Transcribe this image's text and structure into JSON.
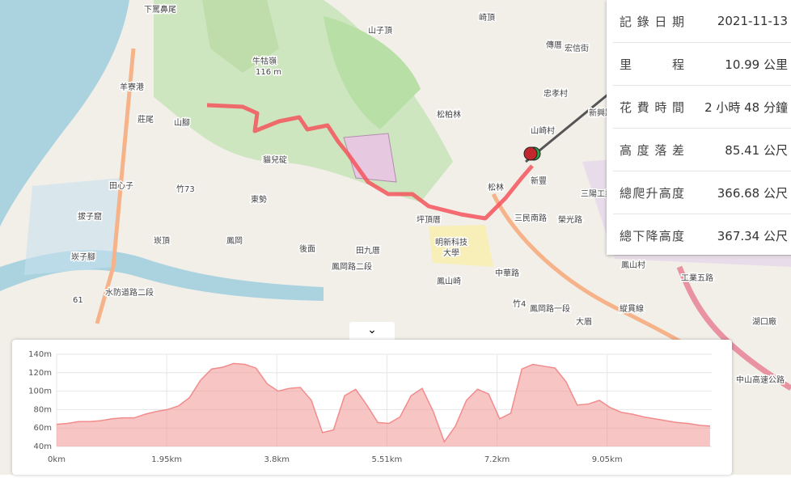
{
  "stats": [
    {
      "label": "記錄日期",
      "value": "2021-11-13"
    },
    {
      "label": "里程",
      "value": "10.99 公里"
    },
    {
      "label": "花費時間",
      "value": "2 小時 48 分鐘"
    },
    {
      "label": "高度落差",
      "value": "85.41 公尺"
    },
    {
      "label": "總爬升高度",
      "value": "366.68 公尺"
    },
    {
      "label": "總下降高度",
      "value": "367.34 公尺"
    }
  ],
  "map_labels": [
    "下罵鼻尾",
    "山子頂",
    "崎頂",
    "羊寮港",
    "牛牯嶺",
    "116 m",
    "松柏林",
    "傳厝",
    "宏信街",
    "忠孝村",
    "莊尾",
    "山腳",
    "貓兒碇",
    "竹73",
    "田心子",
    "東勢",
    "山崎村",
    "新豐",
    "松林",
    "三陽工業",
    "坪頂厝",
    "明新科技",
    "大學",
    "三民南路",
    "榮光路",
    "拔子窟",
    "崁頂",
    "鳳岡",
    "後面",
    "田九厝",
    "崁子腳",
    "鳳岡路二段",
    "鳳山崎",
    "水防道路二段",
    "竹4",
    "鳳岡路一段",
    "大眉",
    "中華路",
    "鳳山村",
    "湖口廠",
    "工業五路",
    "縱貫線",
    "61",
    "新興路",
    "中山高速公路"
  ],
  "elevation": {
    "type": "area",
    "color": "#f28b8b",
    "xlim": [
      0,
      5.95
    ],
    "ylim": [
      40,
      140
    ],
    "xticks": [
      {
        "value": 0,
        "label": "0km"
      },
      {
        "value": 1,
        "label": "1.95km"
      },
      {
        "value": 2,
        "label": "3.8km"
      },
      {
        "value": 3,
        "label": "5.51km"
      },
      {
        "value": 4,
        "label": "7.2km"
      },
      {
        "value": 5,
        "label": "9.05km"
      }
    ],
    "yticks": [
      {
        "value": 40,
        "label": "40m"
      },
      {
        "value": 60,
        "label": "60m"
      },
      {
        "value": 80,
        "label": "80m"
      },
      {
        "value": 100,
        "label": "100m"
      },
      {
        "value": 120,
        "label": "120m"
      },
      {
        "value": 140,
        "label": "140m"
      }
    ],
    "values": [
      64,
      65,
      67,
      67,
      68,
      70,
      71,
      71,
      75,
      78,
      80,
      84,
      93,
      112,
      124,
      126,
      130,
      129,
      125,
      108,
      100,
      103,
      104,
      90,
      55,
      58,
      95,
      102,
      85,
      66,
      65,
      72,
      95,
      103,
      78,
      45,
      62,
      90,
      102,
      97,
      70,
      76,
      124,
      129,
      127,
      125,
      110,
      85,
      86,
      90,
      82,
      77,
      75,
      72,
      70,
      68,
      66,
      65,
      63,
      62
    ]
  }
}
